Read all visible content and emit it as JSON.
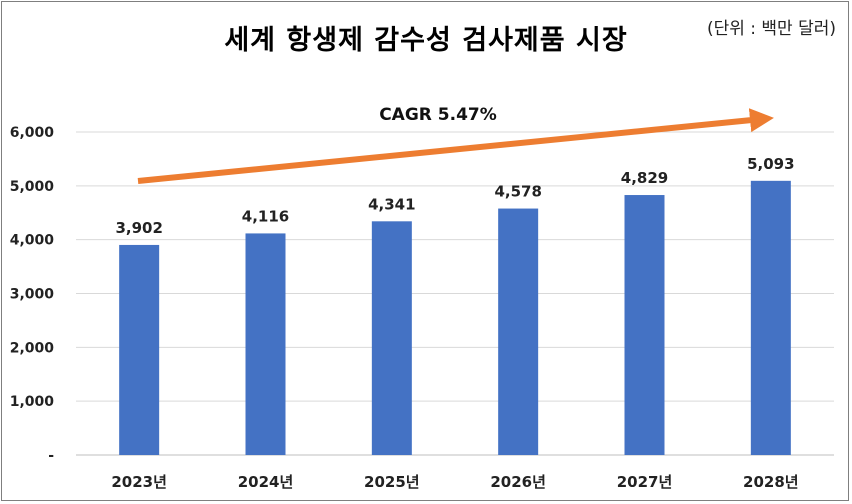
{
  "chart_data": {
    "type": "bar",
    "title": "세계 항생제 감수성 검사제품 시장",
    "unit_note": "(단위 : 백만 달러)",
    "categories": [
      "2023년",
      "2024년",
      "2025년",
      "2026년",
      "2027년",
      "2028년"
    ],
    "values": [
      3902,
      4116,
      4341,
      4578,
      4829,
      5093
    ],
    "value_labels": [
      "3,902",
      "4,116",
      "4,341",
      "4,578",
      "4,829",
      "5,093"
    ],
    "ylim": [
      0,
      6000
    ],
    "yticks": [
      0,
      1000,
      2000,
      3000,
      4000,
      5000,
      6000
    ],
    "ytick_labels": [
      "-",
      "1,000",
      "2,000",
      "3,000",
      "4,000",
      "5,000",
      "6,000"
    ],
    "grid": true,
    "annotation": "CAGR 5.47%",
    "colors": {
      "bar": "#4472c4",
      "arrow": "#ed7d31",
      "grid": "#d9d9d9"
    }
  }
}
